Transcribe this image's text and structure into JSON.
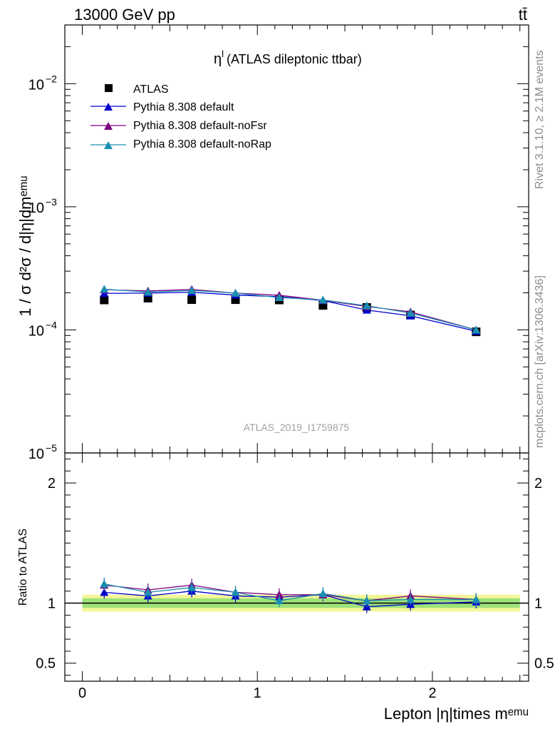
{
  "header": {
    "energy_label": "13000 GeV pp",
    "process_label": "tt̄"
  },
  "side_labels": {
    "rivet": "Rivet 3.1.10, ≥ 2.1M events",
    "source": "mcplots.cern.ch [arXiv:1306.3436]"
  },
  "main_plot": {
    "title_symbol": "η",
    "title_superscript": "l",
    "title_text": "(ATLAS dileptonic ttbar)",
    "watermark": "ATLAS_2019_I1759875",
    "ylabel": "1 / σ d²σ / d|η|dmᵉᵐᵘ",
    "yticks": [
      {
        "value": 0.01,
        "base": "10",
        "exp": "−2"
      },
      {
        "value": 0.001,
        "base": "10",
        "exp": "−3"
      },
      {
        "value": 0.0001,
        "base": "10",
        "exp": "−4"
      },
      {
        "value": 1e-05,
        "base": "10",
        "exp": "−5"
      }
    ]
  },
  "ratio_plot": {
    "ylabel": "Ratio to ATLAS",
    "yticks": [
      "2",
      "1",
      "0.5"
    ]
  },
  "x_axis": {
    "label": "Lepton |η|times mᵉᵐᵘ",
    "ticks": [
      "0",
      "1",
      "2"
    ]
  },
  "legend": [
    "ATLAS",
    "Pythia 8.308 default",
    "Pythia 8.308 default-noFsr",
    "Pythia 8.308 default-noRap"
  ],
  "chart_data": {
    "type": "scatter",
    "x": [
      0.125,
      0.375,
      0.625,
      0.875,
      1.125,
      1.375,
      1.625,
      1.875,
      2.25
    ],
    "xlim": [
      -0.1,
      2.55
    ],
    "ylim": [
      1e-05,
      0.03
    ],
    "yscale": "log",
    "ratio_ylim": [
      0.35,
      2.25
    ],
    "series": [
      {
        "name": "ATLAS",
        "color": "#000000",
        "marker": "square",
        "values": [
          0.000175,
          0.000181,
          0.000176,
          0.000176,
          0.000175,
          0.000158,
          0.000152,
          0.000132,
          9.64e-05
        ],
        "ratio": [
          1,
          1,
          1,
          1,
          1,
          1,
          1,
          1,
          1
        ]
      },
      {
        "name": "Pythia 8.308 default",
        "color": "#0000cc",
        "marker": "triangle",
        "values": [
          0.000198,
          0.000199,
          0.000202,
          0.000192,
          0.000186,
          0.000173,
          0.000145,
          0.00013,
          9.75e-05
        ],
        "ratio": [
          1.09,
          1.06,
          1.1,
          1.06,
          1.05,
          1.07,
          0.97,
          0.99,
          1.01
        ]
      },
      {
        "name": "Pythia 8.308 default-noFsr",
        "color": "#800080",
        "marker": "triangle",
        "values": [
          0.000212,
          0.000207,
          0.000213,
          0.000199,
          0.000191,
          0.000174,
          0.000155,
          0.00014,
          0.0001
        ],
        "ratio": [
          1.15,
          1.11,
          1.15,
          1.09,
          1.07,
          1.07,
          1.02,
          1.06,
          1.03
        ]
      },
      {
        "name": "Pythia 8.308 default-noRap",
        "color": "#1a8fb0",
        "marker": "triangle",
        "values": [
          0.000214,
          0.000203,
          0.000209,
          0.000199,
          0.000183,
          0.000175,
          0.000157,
          0.000137,
          0.0001
        ],
        "ratio": [
          1.16,
          1.09,
          1.13,
          1.09,
          1.02,
          1.08,
          1.02,
          1.03,
          1.03
        ]
      }
    ],
    "uncertainty_band": {
      "inner": 0.04,
      "outer": 0.07,
      "inner_color": "#9ee27a",
      "outer_color": "#f2f797"
    }
  }
}
